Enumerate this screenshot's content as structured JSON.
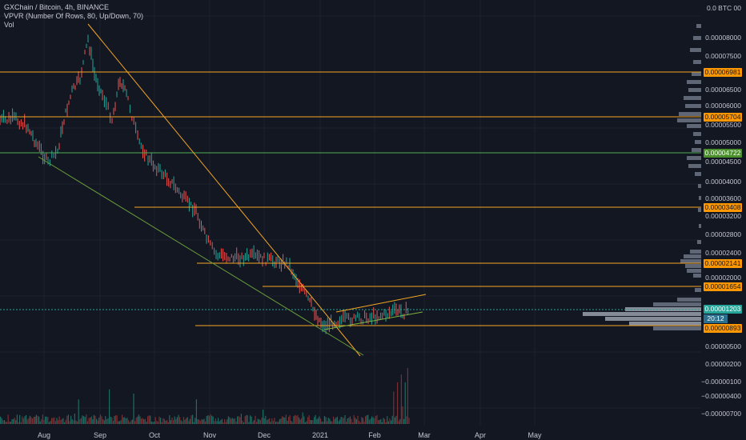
{
  "legend": {
    "title": "GXChain / Bitcoin, 4h, BINANCE",
    "indicator": "VPVR (Number Of Rows, 80, Up/Down, 70)",
    "volume": "Vol"
  },
  "price_axis": {
    "unit_label": "0.0 BTC 00",
    "ticks": [
      "0.00008000",
      "0.00007500",
      "0.00006500",
      "0.00006000",
      "0.00005500",
      "0.00005000",
      "0.00004500",
      "0.00004000",
      "0.00003600",
      "0.00003200",
      "0.00002800",
      "0.00002400",
      "0.00002000",
      "0.00000500",
      "0.00000200",
      "−0.00000100",
      "−0.00000400",
      "−0.00000700"
    ]
  },
  "price_tags": [
    {
      "label": "0.00006981",
      "bg": "#ff9800",
      "fg": "#131722"
    },
    {
      "label": "0.00005704",
      "bg": "#ff9800",
      "fg": "#131722"
    },
    {
      "label": "0.00004722",
      "bg": "#4a8f2c",
      "fg": "#ffffff"
    },
    {
      "label": "0.00003408",
      "bg": "#ff9800",
      "fg": "#131722"
    },
    {
      "label": "0.00002141",
      "bg": "#ff9800",
      "fg": "#131722"
    },
    {
      "label": "0.00001654",
      "bg": "#ff9800",
      "fg": "#131722"
    },
    {
      "label": "0.00001203",
      "bg": "#26a69a",
      "fg": "#ffffff"
    },
    {
      "label": "0.00000893",
      "bg": "#ff9800",
      "fg": "#131722"
    }
  ],
  "countdown": "20:12",
  "time_axis": [
    "Aug",
    "Sep",
    "Oct",
    "Nov",
    "Dec",
    "2021",
    "Feb",
    "Mar",
    "Apr",
    "May"
  ],
  "colors": {
    "background": "#131722",
    "level_line": "#f5a623",
    "green_line": "#4caf50",
    "trend_orange": "#f5a623",
    "trend_green": "#7cb342",
    "candle_up": "#26a69a",
    "candle_down": "#ef5350",
    "vpvr_bar": "#6d7484",
    "vpvr_bar_light": "#9aa0ab"
  }
}
